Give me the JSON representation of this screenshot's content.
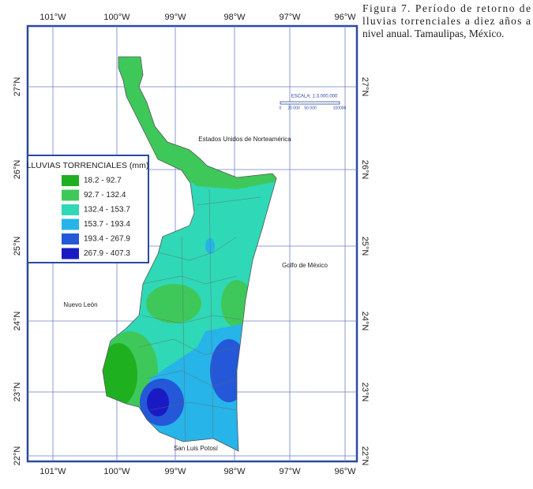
{
  "caption": [
    "Figura 7. Período de retorno de",
    "lluvias torrenciales a diez años a",
    "nivel anual. Tamaulipas, México."
  ],
  "longitudes": [
    "101°W",
    "100°W",
    "99°W",
    "98°W",
    "97°W",
    "96°W"
  ],
  "latitudes": [
    "27°N",
    "26°N",
    "25°N",
    "24°N",
    "23°N",
    "22°N"
  ],
  "legend": {
    "title": "LLUVIAS TORRENCIALES (mm)",
    "classes": [
      {
        "label": "18.2 - 92.7",
        "color": "#1fb01f"
      },
      {
        "label": "92.7 - 132.4",
        "color": "#3ec85a"
      },
      {
        "label": "132.4 - 153.7",
        "color": "#2fd8b6"
      },
      {
        "label": "153.7 - 193.4",
        "color": "#27b4e8"
      },
      {
        "label": "193.4 - 267.9",
        "color": "#2458d8"
      },
      {
        "label": "267.9 - 407.3",
        "color": "#1a1ac4"
      }
    ]
  },
  "places": [
    "Estados Unidos de Norteamérica",
    "Golfo de México",
    "Nuevo León",
    "San Luis Potosí"
  ],
  "scale": {
    "title": "ESCALA: 1:3.000.000",
    "ticks": [
      "0",
      "20 000",
      "50 000",
      "100000"
    ]
  }
}
